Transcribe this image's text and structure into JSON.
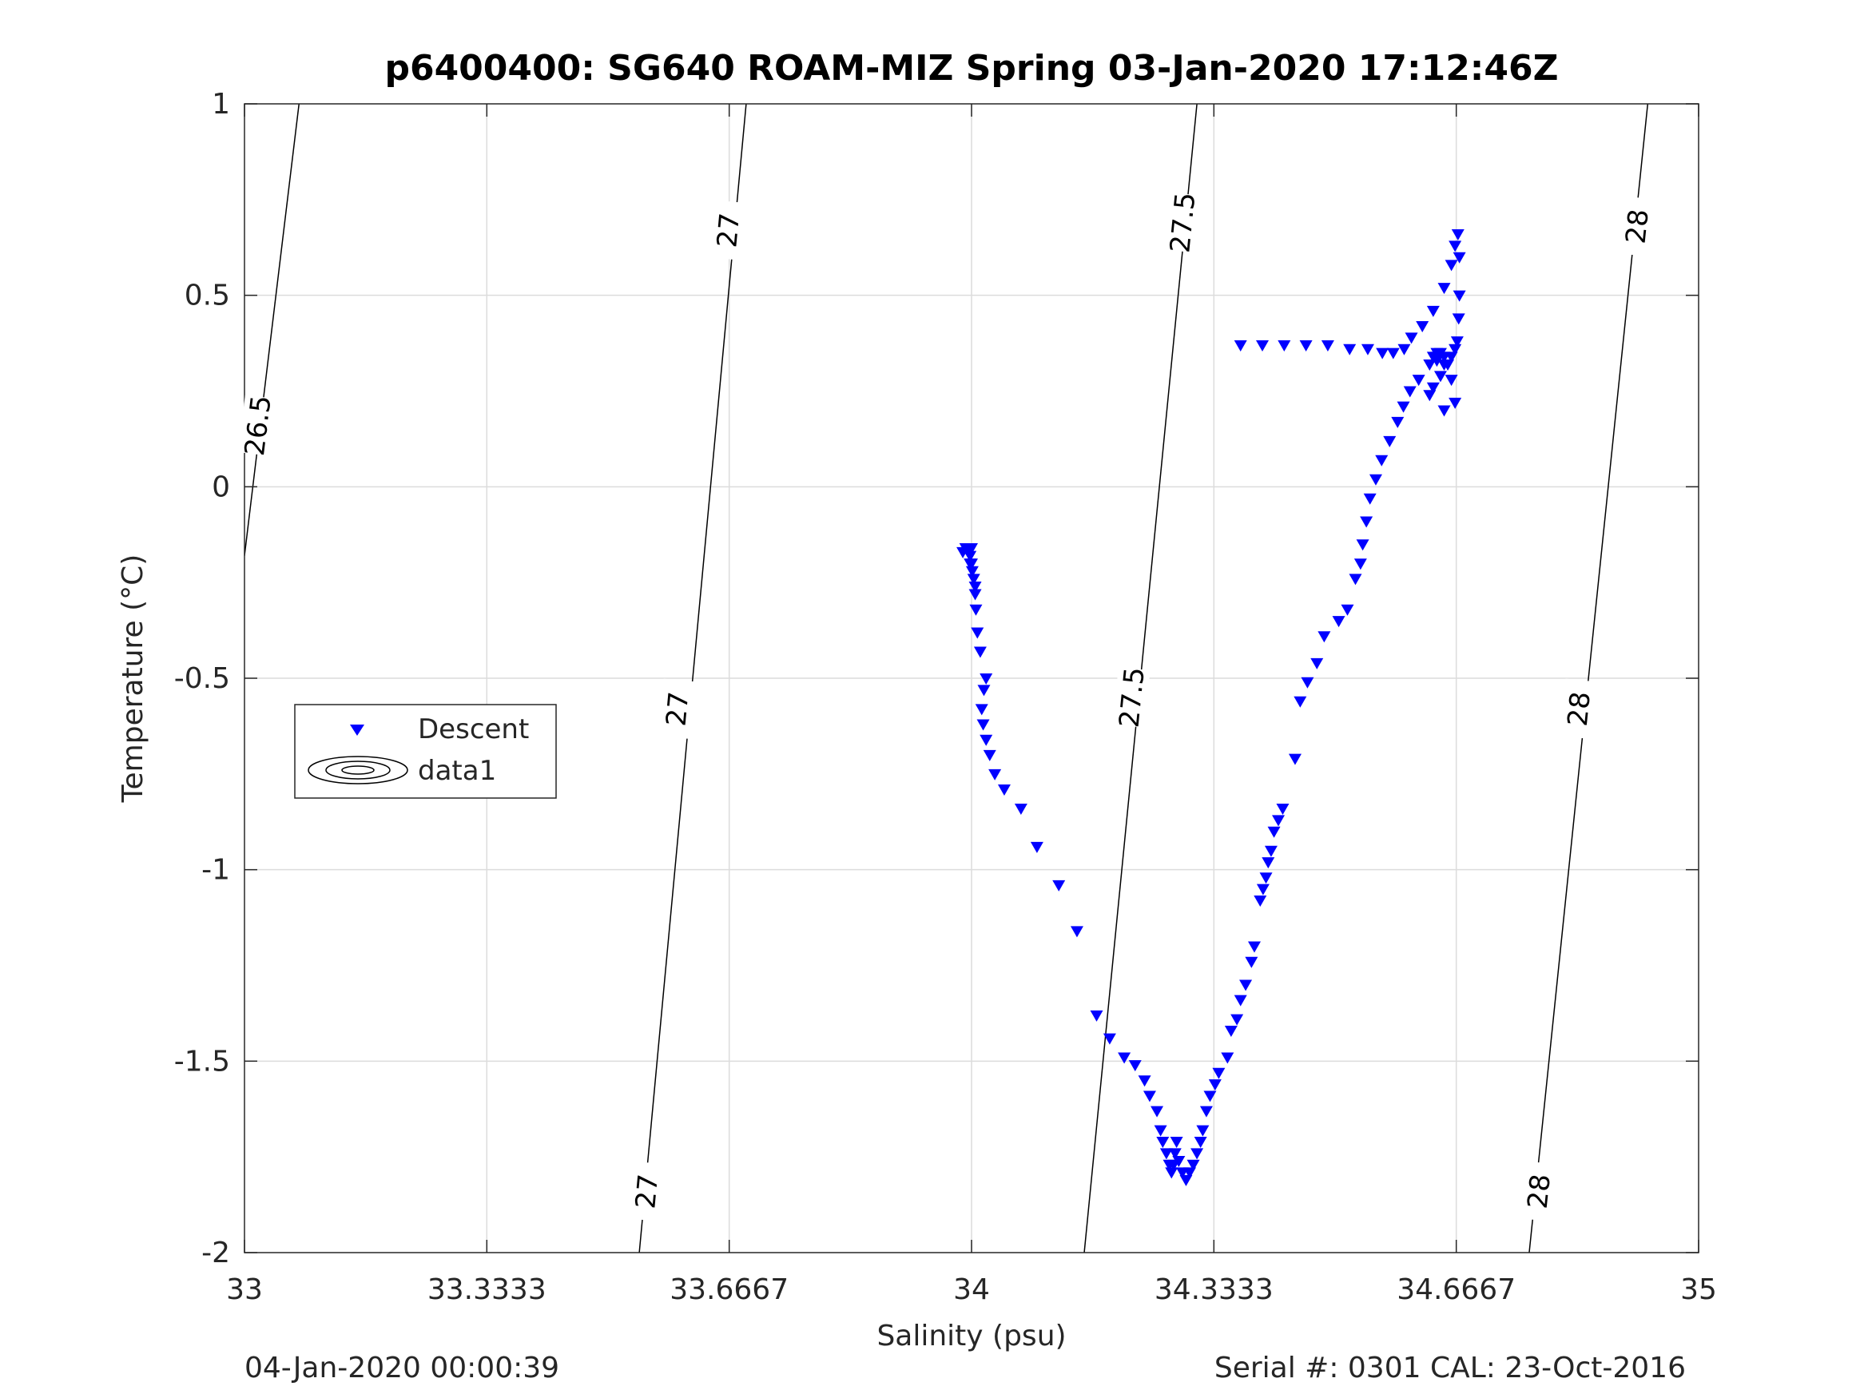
{
  "chart_data": {
    "type": "scatter",
    "title": "p6400400: SG640 ROAM-MIZ Spring 03-Jan-2020 17:12:46Z",
    "xlabel": "Salinity (psu)",
    "ylabel": "Temperature (°C)",
    "xlim": [
      33,
      35
    ],
    "ylim": [
      -2,
      1
    ],
    "grid": true,
    "x_ticks": [
      33,
      33.3333,
      33.6667,
      34,
      34.3333,
      34.6667,
      35
    ],
    "x_tick_labels": [
      "33",
      "33.3333",
      "33.6667",
      "34",
      "34.3333",
      "34.6667",
      "35"
    ],
    "y_ticks": [
      -2,
      -1.5,
      -1,
      -0.5,
      0,
      0.5,
      1
    ],
    "y_tick_labels": [
      "-2",
      "-1.5",
      "-1",
      "-0.5",
      "0",
      "0.5",
      "1"
    ],
    "legend": {
      "placement": "left-middle",
      "entries": [
        "Descent",
        "data1"
      ]
    },
    "marker_color": "#0000ff",
    "contours": [
      {
        "label": "26.5",
        "points": [
          [
            33.0,
            -0.18
          ],
          [
            33.075,
            1.0
          ]
        ],
        "label_positions": [
          [
            33.018,
            0.16
          ]
        ]
      },
      {
        "label": "27",
        "points": [
          [
            33.543,
            -2.0
          ],
          [
            33.69,
            1.0
          ]
        ],
        "label_positions": [
          [
            33.665,
            0.67
          ],
          [
            33.595,
            -0.58
          ],
          [
            33.553,
            -1.84
          ]
        ]
      },
      {
        "label": "27.5",
        "points": [
          [
            34.155,
            -2.0
          ],
          [
            34.31,
            1.0
          ]
        ],
        "label_positions": [
          [
            34.29,
            0.69
          ],
          [
            34.22,
            -0.55
          ]
        ]
      },
      {
        "label": "28",
        "points": [
          [
            34.767,
            -2.0
          ],
          [
            34.93,
            1.0
          ]
        ],
        "label_positions": [
          [
            34.915,
            0.68
          ],
          [
            34.835,
            -0.58
          ],
          [
            34.78,
            -1.84
          ]
        ]
      }
    ],
    "series": [
      {
        "name": "Descent",
        "marker": "triangle-down",
        "x": [
          34.37,
          34.4,
          34.43,
          34.46,
          34.49,
          34.52,
          34.545,
          34.565,
          34.58,
          34.595,
          34.605,
          34.62,
          34.635,
          34.65,
          34.66,
          34.665,
          34.669,
          34.671,
          34.671,
          34.67,
          34.668,
          34.665,
          34.66,
          34.655,
          34.645,
          34.635,
          34.63,
          34.65,
          34.665,
          34.66,
          34.65,
          34.64,
          34.635,
          34.64,
          34.645,
          34.65,
          34.64,
          34.63,
          34.615,
          34.603,
          34.594,
          34.586,
          34.575,
          34.564,
          34.556,
          34.548,
          34.543,
          34.538,
          34.535,
          34.528,
          34.517,
          34.505,
          34.485,
          34.475,
          34.462,
          34.452,
          34.445,
          34.428,
          34.422,
          34.416,
          34.412,
          34.408,
          34.405,
          34.401,
          34.397,
          34.389,
          34.385,
          34.377,
          34.37,
          34.365,
          34.357,
          34.352,
          34.34,
          34.335,
          34.328,
          34.323,
          34.318,
          34.315,
          34.31,
          34.305,
          34.3,
          34.295,
          34.29,
          34.285,
          34.282,
          34.28,
          34.278,
          34.275,
          34.272,
          34.268,
          34.263,
          34.26,
          34.255,
          34.245,
          34.238,
          34.225,
          34.21,
          34.19,
          34.172,
          34.145,
          34.12,
          34.09,
          34.068,
          34.045,
          34.032,
          34.025,
          34.02,
          34.016,
          34.014,
          34.017,
          34.02,
          34.012,
          34.008,
          34.006,
          34.005,
          34.005,
          34.003,
          34.001,
          34.0,
          33.998,
          33.996,
          33.992,
          33.988,
          33.998,
          34.0
        ],
        "y": [
          0.37,
          0.37,
          0.37,
          0.37,
          0.37,
          0.36,
          0.36,
          0.35,
          0.35,
          0.36,
          0.39,
          0.42,
          0.46,
          0.52,
          0.58,
          0.63,
          0.66,
          0.6,
          0.5,
          0.44,
          0.38,
          0.36,
          0.34,
          0.32,
          0.29,
          0.26,
          0.24,
          0.2,
          0.22,
          0.28,
          0.32,
          0.33,
          0.34,
          0.35,
          0.35,
          0.34,
          0.34,
          0.32,
          0.28,
          0.25,
          0.21,
          0.17,
          0.12,
          0.07,
          0.02,
          -0.03,
          -0.09,
          -0.15,
          -0.2,
          -0.24,
          -0.32,
          -0.35,
          -0.39,
          -0.46,
          -0.51,
          -0.56,
          -0.71,
          -0.84,
          -0.87,
          -0.9,
          -0.95,
          -0.98,
          -1.02,
          -1.05,
          -1.08,
          -1.2,
          -1.24,
          -1.3,
          -1.34,
          -1.39,
          -1.42,
          -1.49,
          -1.53,
          -1.56,
          -1.59,
          -1.63,
          -1.68,
          -1.71,
          -1.74,
          -1.77,
          -1.79,
          -1.81,
          -1.79,
          -1.76,
          -1.71,
          -1.74,
          -1.77,
          -1.79,
          -1.77,
          -1.74,
          -1.71,
          -1.68,
          -1.63,
          -1.59,
          -1.55,
          -1.51,
          -1.49,
          -1.44,
          -1.38,
          -1.16,
          -1.04,
          -0.94,
          -0.84,
          -0.79,
          -0.75,
          -0.7,
          -0.66,
          -0.62,
          -0.58,
          -0.53,
          -0.5,
          -0.43,
          -0.38,
          -0.32,
          -0.28,
          -0.26,
          -0.24,
          -0.22,
          -0.2,
          -0.18,
          -0.17,
          -0.16,
          -0.17,
          -0.2,
          -0.16
        ]
      }
    ]
  },
  "footer": {
    "left_text": "04-Jan-2020 00:00:39",
    "right_text": "Serial #: 0301  CAL: 23-Oct-2016"
  }
}
